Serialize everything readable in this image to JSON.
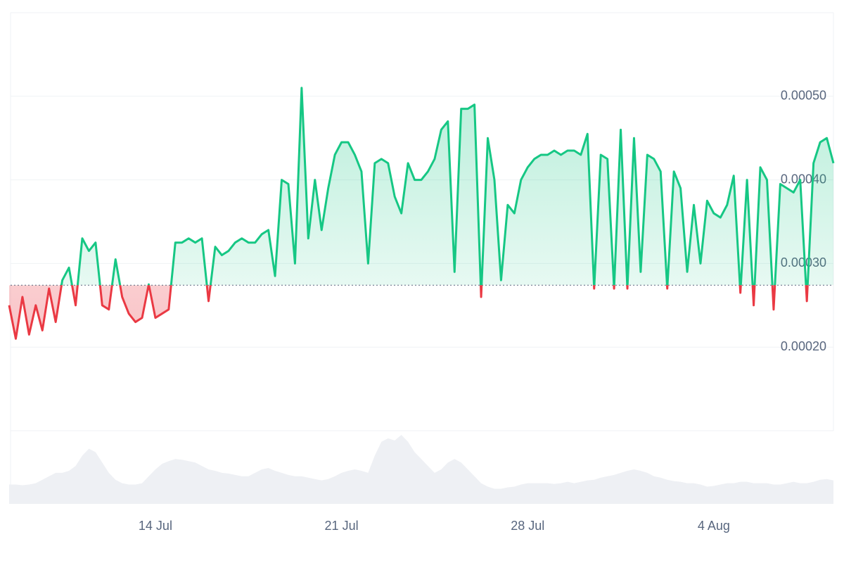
{
  "chart_data": {
    "type": "baseline-area",
    "categories": [
      null,
      null,
      null,
      null,
      null,
      null,
      null,
      null,
      null,
      null,
      null,
      null,
      null,
      null,
      null,
      null,
      null,
      null,
      null,
      null,
      null,
      null,
      "14 Jul",
      null,
      null,
      null,
      null,
      null,
      null,
      null,
      null,
      null,
      null,
      null,
      null,
      null,
      null,
      null,
      null,
      null,
      null,
      null,
      null,
      null,
      null,
      null,
      null,
      null,
      null,
      null,
      "21 Jul",
      null,
      null,
      null,
      null,
      null,
      null,
      null,
      null,
      null,
      null,
      null,
      null,
      null,
      null,
      null,
      null,
      null,
      null,
      null,
      null,
      null,
      null,
      null,
      null,
      null,
      null,
      null,
      "28 Jul",
      null,
      null,
      null,
      null,
      null,
      null,
      null,
      null,
      null,
      null,
      null,
      null,
      null,
      null,
      null,
      null,
      null,
      null,
      null,
      null,
      null,
      null,
      null,
      null,
      null,
      null,
      null,
      "4 Aug",
      null,
      null,
      null,
      null,
      null,
      null,
      null,
      null,
      null,
      null,
      null,
      null,
      null,
      null,
      null,
      null,
      null,
      null
    ],
    "values": [
      0.00025,
      0.00021,
      0.00026,
      0.000215,
      0.00025,
      0.00022,
      0.00027,
      0.00023,
      0.00028,
      0.000295,
      0.00025,
      0.00033,
      0.000315,
      0.000325,
      0.00025,
      0.000245,
      0.000305,
      0.00026,
      0.00024,
      0.00023,
      0.000235,
      0.000275,
      0.000235,
      0.00024,
      0.000245,
      0.000325,
      0.000325,
      0.00033,
      0.000325,
      0.00033,
      0.000255,
      0.00032,
      0.00031,
      0.000315,
      0.000325,
      0.00033,
      0.000325,
      0.000325,
      0.000335,
      0.00034,
      0.000285,
      0.0004,
      0.000395,
      0.0003,
      0.00051,
      0.00033,
      0.0004,
      0.00034,
      0.00039,
      0.00043,
      0.000445,
      0.000445,
      0.00043,
      0.00041,
      0.0003,
      0.00042,
      0.000425,
      0.00042,
      0.00038,
      0.00036,
      0.00042,
      0.0004,
      0.0004,
      0.00041,
      0.000425,
      0.00046,
      0.00047,
      0.00029,
      0.000485,
      0.000485,
      0.00049,
      0.00026,
      0.00045,
      0.0004,
      0.00028,
      0.00037,
      0.00036,
      0.0004,
      0.000415,
      0.000425,
      0.00043,
      0.00043,
      0.000435,
      0.00043,
      0.000435,
      0.000435,
      0.00043,
      0.000455,
      0.00027,
      0.00043,
      0.000425,
      0.00027,
      0.00046,
      0.00027,
      0.00045,
      0.00029,
      0.00043,
      0.000425,
      0.00041,
      0.00027,
      0.00041,
      0.00039,
      0.00029,
      0.00037,
      0.0003,
      0.000375,
      0.00036,
      0.000355,
      0.00037,
      0.000405,
      0.000265,
      0.0004,
      0.00025,
      0.000415,
      0.0004,
      0.000245,
      0.000395,
      0.00039,
      0.000385,
      0.0004,
      0.000255,
      0.00042,
      0.000445,
      0.00045,
      0.00042
    ],
    "colors": {
      "up": "#16c784",
      "down": "#ea3943"
    },
    "baseline": 0.000274,
    "ylim": [
      0.0001,
      0.0006
    ],
    "yticks": [
      {
        "value": 0.0002,
        "label": "0.00020"
      },
      {
        "value": 0.0003,
        "label": "0.00030"
      },
      {
        "value": 0.0004,
        "label": "0.00040"
      },
      {
        "value": 0.0005,
        "label": "0.00050"
      }
    ],
    "grid": true,
    "volume": {
      "color": "#eef0f4",
      "values": [
        28,
        28,
        27,
        28,
        30,
        35,
        40,
        45,
        45,
        48,
        55,
        70,
        80,
        75,
        60,
        45,
        35,
        30,
        28,
        28,
        30,
        40,
        50,
        58,
        62,
        65,
        64,
        62,
        60,
        55,
        50,
        48,
        45,
        44,
        42,
        40,
        40,
        45,
        50,
        52,
        48,
        45,
        42,
        40,
        40,
        38,
        36,
        34,
        36,
        40,
        45,
        48,
        50,
        48,
        45,
        70,
        90,
        95,
        92,
        100,
        90,
        75,
        65,
        55,
        45,
        50,
        60,
        65,
        60,
        50,
        40,
        30,
        25,
        22,
        22,
        24,
        25,
        28,
        30,
        30,
        30,
        30,
        29,
        30,
        32,
        30,
        32,
        34,
        35,
        38,
        40,
        42,
        45,
        48,
        50,
        48,
        45,
        40,
        38,
        35,
        33,
        32,
        30,
        30,
        28,
        25,
        26,
        28,
        30,
        30,
        32,
        32,
        30,
        30,
        30,
        28,
        28,
        30,
        32,
        30,
        30,
        32,
        35,
        36,
        34
      ]
    }
  }
}
